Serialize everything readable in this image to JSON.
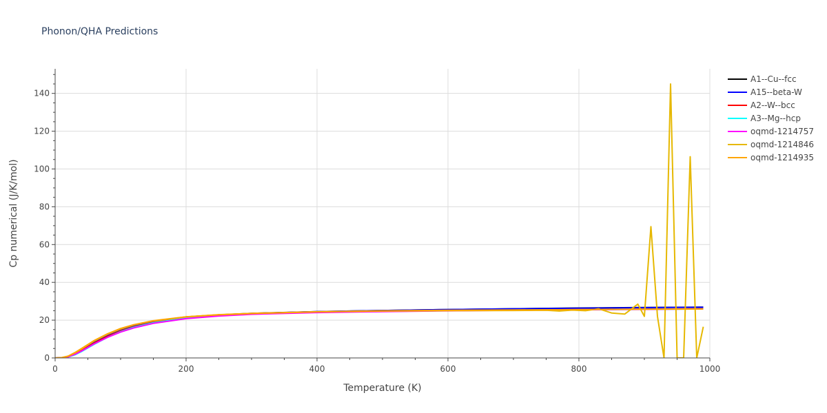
{
  "chart_data": {
    "type": "line",
    "title": "Phonon/QHA Predictions",
    "xlabel": "Temperature (K)",
    "ylabel": "Cp numerical (J/K/mol)",
    "xlim": [
      0,
      1000
    ],
    "ylim": [
      0,
      153
    ],
    "xticks": [
      0,
      200,
      400,
      600,
      800,
      1000
    ],
    "yticks": [
      0,
      20,
      40,
      60,
      80,
      100,
      120,
      140
    ],
    "grid": true,
    "legend_position": "right",
    "series": [
      {
        "name": "A1--Cu--fcc",
        "color": "#000000",
        "x": [
          0,
          10,
          20,
          30,
          40,
          60,
          80,
          100,
          120,
          150,
          200,
          250,
          300,
          400,
          500,
          600,
          700,
          800,
          900,
          990
        ],
        "y": [
          0,
          0.1,
          0.9,
          2.6,
          4.7,
          9.1,
          12.6,
          15.3,
          17.3,
          19.5,
          21.7,
          22.8,
          23.6,
          24.5,
          25.1,
          25.6,
          26.0,
          26.4,
          26.7,
          26.9
        ]
      },
      {
        "name": "A15--beta-W",
        "color": "#0000ff",
        "x": [
          0,
          10,
          20,
          30,
          40,
          60,
          80,
          100,
          120,
          150,
          200,
          250,
          300,
          400,
          500,
          600,
          700,
          800,
          900,
          990
        ],
        "y": [
          0,
          0.1,
          0.7,
          2.2,
          4.1,
          8.3,
          11.8,
          14.6,
          16.8,
          19.0,
          21.4,
          22.7,
          23.5,
          24.5,
          25.1,
          25.6,
          26.0,
          26.3,
          26.6,
          26.8
        ]
      },
      {
        "name": "A2--W--bcc",
        "color": "#ff0000",
        "x": [
          0,
          10,
          20,
          30,
          40,
          60,
          80,
          100,
          120,
          150,
          200,
          250,
          300,
          400,
          500,
          600,
          700,
          800,
          900,
          990
        ],
        "y": [
          0,
          0.1,
          0.6,
          1.9,
          3.8,
          7.9,
          11.4,
          14.3,
          16.5,
          18.8,
          21.2,
          22.5,
          23.3,
          24.2,
          24.7,
          25.0,
          25.3,
          25.6,
          25.8,
          26.0
        ]
      },
      {
        "name": "A3--Mg--hcp",
        "color": "#00ffff",
        "x": [
          0,
          10,
          20,
          30,
          40,
          60,
          80,
          100,
          120,
          150,
          200,
          250,
          300,
          400,
          500,
          600,
          700,
          800,
          900,
          990
        ],
        "y": [
          0,
          0.1,
          0.5,
          1.6,
          3.3,
          7.3,
          10.9,
          13.9,
          16.2,
          18.6,
          21.1,
          22.4,
          23.2,
          24.1,
          24.6,
          25.0,
          25.3,
          25.5,
          25.7,
          25.9
        ]
      },
      {
        "name": "oqmd-1214757",
        "color": "#ff00ff",
        "x": [
          0,
          10,
          20,
          30,
          40,
          60,
          80,
          100,
          120,
          150,
          200,
          250,
          300,
          400,
          500,
          600,
          700,
          800,
          900,
          990
        ],
        "y": [
          0,
          0.1,
          0.6,
          1.9,
          3.6,
          7.5,
          10.9,
          13.7,
          15.9,
          18.3,
          20.8,
          22.2,
          23.1,
          24.0,
          24.5,
          24.9,
          25.2,
          25.5,
          25.7,
          25.9
        ]
      },
      {
        "name": "oqmd-1214846",
        "color": "#e6b800",
        "x": [
          0,
          10,
          20,
          30,
          40,
          60,
          80,
          100,
          120,
          150,
          200,
          250,
          300,
          400,
          500,
          600,
          700,
          750,
          770,
          790,
          810,
          830,
          850,
          870,
          890,
          900,
          910,
          920,
          930,
          940,
          950,
          960,
          970,
          980,
          990
        ],
        "y": [
          0,
          0.1,
          0.9,
          2.6,
          4.6,
          9.0,
          12.5,
          15.3,
          17.4,
          19.6,
          21.7,
          22.8,
          23.5,
          24.4,
          24.8,
          25.0,
          25.1,
          25.2,
          24.8,
          25.3,
          25.0,
          26.0,
          23.8,
          23.2,
          28.5,
          22.0,
          69.5,
          22.0,
          0,
          145.0,
          0,
          0,
          106.5,
          0,
          16.5
        ]
      },
      {
        "name": "oqmd-1214935",
        "color": "#ffa500",
        "x": [
          0,
          10,
          20,
          30,
          40,
          60,
          80,
          100,
          120,
          150,
          200,
          250,
          300,
          400,
          500,
          600,
          700,
          800,
          900,
          990
        ],
        "y": [
          0,
          0.2,
          1.0,
          2.8,
          4.9,
          9.3,
          12.8,
          15.6,
          17.6,
          19.7,
          21.8,
          22.9,
          23.6,
          24.4,
          24.9,
          25.2,
          25.4,
          25.6,
          25.8,
          25.9
        ]
      }
    ]
  }
}
